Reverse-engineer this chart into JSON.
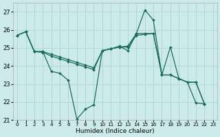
{
  "xlabel": "Humidex (Indice chaleur)",
  "xlim": [
    -0.5,
    23.5
  ],
  "ylim": [
    21,
    27.5
  ],
  "yticks": [
    21,
    22,
    23,
    24,
    25,
    26,
    27
  ],
  "xticks": [
    0,
    1,
    2,
    3,
    4,
    5,
    6,
    7,
    8,
    9,
    10,
    11,
    12,
    13,
    14,
    15,
    16,
    17,
    18,
    19,
    20,
    21,
    22,
    23
  ],
  "bg_color": "#cceaea",
  "grid_color": "#aad4d4",
  "line_color": "#1a6b5a",
  "line1_x": [
    0,
    1,
    2,
    3,
    4,
    5,
    6,
    7,
    8,
    9,
    10,
    11,
    12,
    13,
    14,
    15,
    16,
    17,
    18,
    19,
    20,
    21,
    22
  ],
  "line1_y": [
    25.7,
    25.9,
    24.8,
    24.8,
    23.7,
    23.6,
    23.2,
    21.05,
    21.6,
    21.85,
    24.85,
    24.95,
    25.1,
    24.85,
    25.8,
    27.1,
    26.55,
    23.5,
    25.05,
    23.3,
    23.1,
    21.95,
    21.9
  ],
  "line2_x": [
    0,
    1,
    2,
    3,
    4,
    5,
    6,
    7,
    8,
    9,
    10,
    11,
    12,
    13,
    14,
    15,
    16,
    17,
    18,
    19,
    20,
    21,
    22
  ],
  "line2_y": [
    25.7,
    25.9,
    24.8,
    24.75,
    24.55,
    24.4,
    24.25,
    24.1,
    23.95,
    23.8,
    24.85,
    24.95,
    25.05,
    25.05,
    25.7,
    25.75,
    25.8,
    23.5,
    23.5,
    23.3,
    23.1,
    23.1,
    21.9
  ],
  "line3_x": [
    0,
    1,
    2,
    3,
    4,
    5,
    6,
    7,
    8,
    9,
    10,
    11,
    12,
    13,
    14,
    15,
    16,
    17,
    18,
    19,
    20,
    21,
    22
  ],
  "line3_y": [
    25.7,
    25.9,
    24.8,
    24.8,
    24.65,
    24.5,
    24.35,
    24.2,
    24.05,
    23.9,
    24.85,
    24.95,
    25.05,
    25.1,
    25.8,
    25.8,
    25.8,
    23.5,
    23.5,
    23.3,
    23.1,
    23.1,
    21.9
  ]
}
